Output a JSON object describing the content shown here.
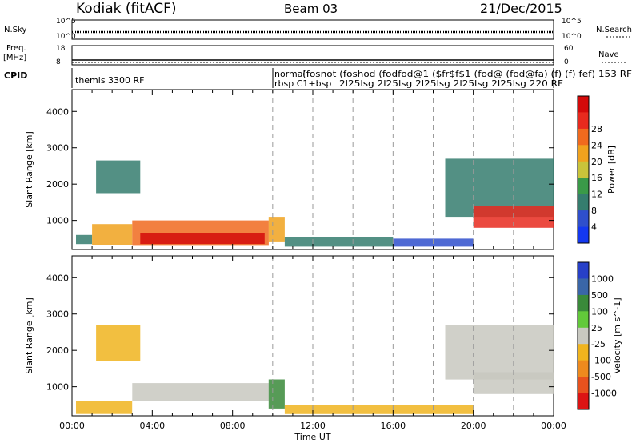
{
  "header": {
    "station": "Kodiak (fitACF)",
    "beam": "Beam 03",
    "date": "21/Dec/2015"
  },
  "noise_panel": {
    "left_label": "N.Sky",
    "right_label": "N.Search",
    "left_ticks": [
      "10^5",
      "10^0"
    ],
    "right_ticks": [
      "10^5",
      "10^0"
    ]
  },
  "freq_panel": {
    "left_label_1": "Freq.",
    "left_label_2": "[MHz]",
    "right_label": "Nave",
    "left_ticks": [
      "18",
      "8"
    ],
    "right_ticks": [
      "60",
      "0"
    ]
  },
  "cpid": {
    "label": "CPID",
    "first": "themis 3300 RF",
    "second_line_1": "normal",
    "second_line_2": "rbsp C1+bsp",
    "overlap_text": "(fosnot (foshod (fodfod@1 ($fr$f$1 (fod@ (fod@fa) (f) (f) fef) 153 RF",
    "overlap_text_2": "2l25lsg 2l25lsg 2l25lsg 2l25lsg 2l25lsg 220 RF"
  },
  "colors": {
    "power_scale": [
      "#1438f0",
      "#2f4fcc",
      "#357d6e",
      "#3a9a48",
      "#c9c43a",
      "#f0a21e",
      "#f06a1e",
      "#e82a1e",
      "#d40a0a"
    ],
    "velocity_scale": [
      "#2740c8",
      "#3a66a8",
      "#3a8a3a",
      "#62c93a",
      "#c8c8c0",
      "#f0b41e",
      "#ee8a1e",
      "#e8521e",
      "#dc1414"
    ]
  },
  "chart_data": [
    {
      "type": "heatmap",
      "panel": "power",
      "ylabel": "Slant Range [km]",
      "ylim": [
        200,
        4600
      ],
      "yticks": [
        "1000",
        "2000",
        "3000",
        "4000"
      ],
      "xlim_hours": [
        0,
        24
      ],
      "xticks": [
        "00:00",
        "04:00",
        "08:00",
        "12:00",
        "16:00",
        "20:00",
        "00:00"
      ],
      "colorbar_label": "Power [dB]",
      "colorbar_ticks": [
        "4",
        "8",
        "12",
        "16",
        "20",
        "24",
        "28"
      ],
      "regions": [
        {
          "t0": 0.2,
          "t1": 1.0,
          "r0": 350,
          "r1": 600,
          "level": 2
        },
        {
          "t0": 1.0,
          "t1": 3.0,
          "r0": 320,
          "r1": 900,
          "level": 5
        },
        {
          "t0": 3.0,
          "t1": 9.8,
          "r0": 300,
          "r1": 1000,
          "level": 6
        },
        {
          "t0": 3.4,
          "t1": 9.6,
          "r0": 350,
          "r1": 650,
          "level": 8
        },
        {
          "t0": 1.2,
          "t1": 3.4,
          "r0": 1750,
          "r1": 2650,
          "level": 2
        },
        {
          "t0": 9.8,
          "t1": 10.6,
          "r0": 400,
          "r1": 1100,
          "level": 5
        },
        {
          "t0": 10.6,
          "t1": 16.0,
          "r0": 280,
          "r1": 550,
          "level": 2
        },
        {
          "t0": 16.0,
          "t1": 20.0,
          "r0": 280,
          "r1": 500,
          "level": 1
        },
        {
          "t0": 18.6,
          "t1": 24.0,
          "r0": 1100,
          "r1": 2700,
          "level": 2
        },
        {
          "t0": 20.0,
          "t1": 24.0,
          "r0": 800,
          "r1": 1400,
          "level": 7
        }
      ]
    },
    {
      "type": "heatmap",
      "panel": "velocity",
      "ylabel": "Slant Range [km]",
      "ylim": [
        200,
        4600
      ],
      "yticks": [
        "1000",
        "2000",
        "3000",
        "4000"
      ],
      "xlim_hours": [
        0,
        24
      ],
      "xticks": [
        "00:00",
        "04:00",
        "08:00",
        "12:00",
        "16:00",
        "20:00",
        "00:00"
      ],
      "xlabel": "Time UT",
      "colorbar_label": "Velocity [m s^-1]",
      "colorbar_ticks": [
        "1000",
        "500",
        "100",
        "25",
        "-25",
        "-100",
        "-500",
        "-1000"
      ],
      "regions": [
        {
          "t0": 0.2,
          "t1": 3.0,
          "r0": 250,
          "r1": 600,
          "level": 5
        },
        {
          "t0": 3.0,
          "t1": 9.8,
          "r0": 600,
          "r1": 1100,
          "level": 4
        },
        {
          "t0": 1.2,
          "t1": 3.4,
          "r0": 1700,
          "r1": 2700,
          "level": 5
        },
        {
          "t0": 9.8,
          "t1": 10.6,
          "r0": 400,
          "r1": 1200,
          "level": 2
        },
        {
          "t0": 10.6,
          "t1": 20.0,
          "r0": 250,
          "r1": 500,
          "level": 5
        },
        {
          "t0": 18.6,
          "t1": 24.0,
          "r0": 1200,
          "r1": 2700,
          "level": 4
        },
        {
          "t0": 20.0,
          "t1": 24.0,
          "r0": 800,
          "r1": 1400,
          "level": 4
        }
      ]
    }
  ],
  "page_title": "Kodiak (fitACF) Beam 03 21/Dec/2015"
}
